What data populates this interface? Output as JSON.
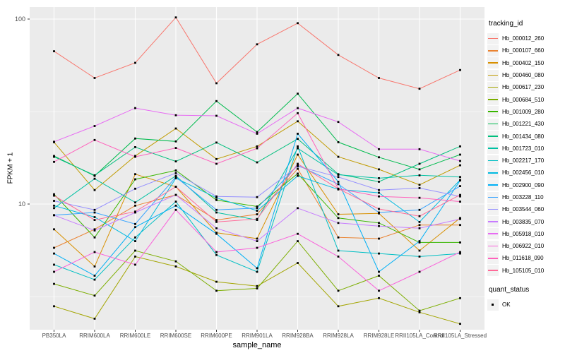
{
  "figure": {
    "y_axis_title": "FPKM + 1",
    "x_axis_title": "sample_name"
  },
  "legend": {
    "tracking_title": "tracking_id",
    "quant_title": "quant_status",
    "quant_item_label": "OK"
  },
  "colors": {
    "panel_background": "#EBEBEB",
    "gridline": "#FFFFFF",
    "axis_text": "#4D4D4D",
    "tick_mark": "#333333",
    "point_marker": "#000000",
    "legend_key_background": "#F2F2F2"
  },
  "chart_data": {
    "type": "line",
    "title": "",
    "xlabel": "sample_name",
    "ylabel": "FPKM + 1",
    "y_scale": "log10",
    "ylim": [
      2.1,
      116
    ],
    "y_major_ticks": [
      10,
      100
    ],
    "y_minor_gridlines": [
      3.162,
      31.62
    ],
    "grid": true,
    "legend_position": "right",
    "point_marker": "black-square",
    "quant_status_legend": {
      "title": "quant_status",
      "items": [
        "OK"
      ]
    },
    "categories": [
      "PB350LA",
      "RRIM600LA",
      "RRIM600LE",
      "RRIM600SE",
      "RRIM600PE",
      "RRIM901LA",
      "RRIM928BA",
      "RRIM928LA",
      "RRIM928LE",
      "RRII105LA_Control",
      "RRII105LA_Stressed"
    ],
    "series": [
      {
        "name": "Hb_000012_260",
        "color": "#F8766D",
        "values": [
          67,
          48,
          58,
          102,
          45,
          73,
          95,
          64,
          48,
          42,
          53
        ]
      },
      {
        "name": "Hb_000107_660",
        "color": "#EA8331",
        "values": [
          5.8,
          7.3,
          9.8,
          11.2,
          8.2,
          8.8,
          15.5,
          6.6,
          6.5,
          7.7,
          7.7
        ]
      },
      {
        "name": "Hb_000402_150",
        "color": "#D89000",
        "values": [
          7.3,
          4.6,
          14.5,
          12.4,
          7.0,
          6.5,
          18.5,
          8.8,
          8.9,
          5.6,
          8.4
        ]
      },
      {
        "name": "Hb_000460_080",
        "color": "#C09B00",
        "values": [
          21.6,
          11.9,
          18.2,
          25.6,
          17.5,
          20.5,
          28.0,
          18.0,
          15.4,
          12.7,
          16.2
        ]
      },
      {
        "name": "Hb_000617_230",
        "color": "#A3A500",
        "values": [
          2.8,
          2.4,
          5.2,
          4.6,
          3.8,
          3.6,
          4.8,
          2.8,
          3.1,
          2.6,
          2.25
        ]
      },
      {
        "name": "Hb_000684_510",
        "color": "#7CAE00",
        "values": [
          3.7,
          3.2,
          5.6,
          4.9,
          3.4,
          3.5,
          6.3,
          3.4,
          4.1,
          2.65,
          3.1
        ]
      },
      {
        "name": "Hb_001009_280",
        "color": "#39B600",
        "values": [
          11.3,
          6.6,
          13.6,
          15.2,
          10.5,
          9.7,
          14.6,
          8.4,
          7.9,
          6.2,
          6.2
        ]
      },
      {
        "name": "Hb_001221_430",
        "color": "#00BB4E",
        "values": [
          18.2,
          14.2,
          22.6,
          21.8,
          36.0,
          24.5,
          39.5,
          21.6,
          17.9,
          15.4,
          18.5
        ]
      },
      {
        "name": "Hb_001434_080",
        "color": "#00BF7D",
        "values": [
          18.0,
          14.3,
          20.3,
          17.0,
          21.5,
          16.8,
          22.5,
          14.5,
          13.2,
          16.5,
          20.5
        ]
      },
      {
        "name": "Hb_001723_010",
        "color": "#00C1A3",
        "values": [
          9.5,
          13.7,
          10.2,
          14.2,
          9.0,
          8.2,
          20.0,
          14.4,
          13.8,
          14.3,
          14.0
        ]
      },
      {
        "name": "Hb_002217_170",
        "color": "#00BFC4",
        "values": [
          4.7,
          3.9,
          6.6,
          10.3,
          5.3,
          4.3,
          20.5,
          5.6,
          5.4,
          5.2,
          5.4
        ]
      },
      {
        "name": "Hb_002456_010",
        "color": "#00BAE0",
        "values": [
          9.8,
          8.5,
          6.3,
          13.8,
          10.8,
          9.2,
          14.2,
          12.0,
          11.5,
          8.0,
          13.5
        ]
      },
      {
        "name": "Hb_002900_090",
        "color": "#00B0F6",
        "values": [
          5.4,
          4.1,
          7.5,
          9.8,
          6.9,
          4.5,
          24.0,
          13.2,
          4.3,
          6.3,
          13.4
        ]
      },
      {
        "name": "Hb_003228_110",
        "color": "#35A2FF",
        "values": [
          8.7,
          9.0,
          7.8,
          14.0,
          9.3,
          9.5,
          16.2,
          12.8,
          9.0,
          9.3,
          12.5
        ]
      },
      {
        "name": "Hb_003544_060",
        "color": "#9590FF",
        "values": [
          10.4,
          9.3,
          12.1,
          14.7,
          11.0,
          10.9,
          16.0,
          14.0,
          11.9,
          12.2,
          11.0
        ]
      },
      {
        "name": "Hb_003835_070",
        "color": "#C77CFF",
        "values": [
          8.7,
          7.2,
          9.0,
          11.2,
          7.4,
          6.3,
          9.5,
          7.9,
          7.6,
          7.4,
          8.3
        ]
      },
      {
        "name": "Hb_005918_010",
        "color": "#E76BF3",
        "values": [
          21.7,
          26.4,
          33.0,
          30.2,
          30.0,
          24.0,
          33.0,
          27.8,
          19.8,
          19.8,
          17.1
        ]
      },
      {
        "name": "Hb_006922_010",
        "color": "#FA62DB",
        "values": [
          4.3,
          5.5,
          4.7,
          9.3,
          5.5,
          5.8,
          6.9,
          5.2,
          3.4,
          4.3,
          5.5
        ]
      },
      {
        "name": "Hb_011618_090",
        "color": "#FF62BC",
        "values": [
          16.9,
          22.2,
          18.0,
          20.1,
          16.5,
          20.0,
          31.0,
          12.1,
          11.0,
          10.8,
          10.3
        ]
      },
      {
        "name": "Hb_105105_010",
        "color": "#FF6A98",
        "values": [
          11.1,
          8.2,
          9.1,
          12.4,
          8.0,
          8.3,
          16.5,
          12.1,
          9.4,
          8.6,
          11.2
        ]
      }
    ]
  }
}
